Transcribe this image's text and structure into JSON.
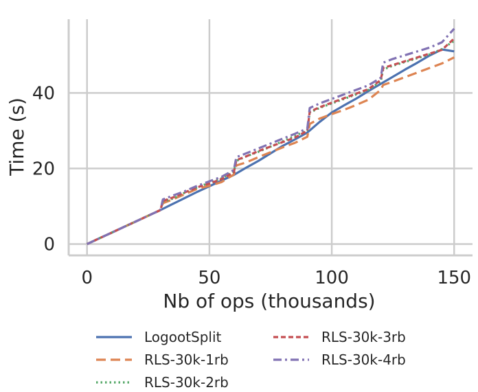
{
  "chart_data": {
    "type": "line",
    "xlabel": "Nb of ops (thousands)",
    "ylabel": "Time (s)",
    "xlim": [
      -7.5,
      157.5
    ],
    "ylim": [
      -3,
      59.5
    ],
    "x_ticks": [
      0,
      50,
      100,
      150
    ],
    "y_ticks": [
      0,
      20,
      40
    ],
    "grid": true,
    "legend_position": "bottom",
    "series": [
      {
        "name": "LogootSplit",
        "color": "#4c72b0",
        "dash": "solid",
        "x": [
          0,
          5,
          10,
          15,
          20,
          25,
          30,
          35,
          40,
          45,
          50,
          55,
          60,
          65,
          70,
          75,
          80,
          85,
          90,
          95,
          100,
          105,
          110,
          115,
          120,
          125,
          130,
          135,
          140,
          145,
          150
        ],
        "y": [
          0,
          1.5,
          3,
          4.5,
          6,
          7.5,
          9,
          10.6,
          12.2,
          13.8,
          15.3,
          16.8,
          18.3,
          20.2,
          22,
          24,
          26,
          27.7,
          29.5,
          32.3,
          34.8,
          36.7,
          38.5,
          40.5,
          42.4,
          44.3,
          46.2,
          48,
          49.9,
          51.5,
          51
        ]
      },
      {
        "name": "RLS-30k-1rb",
        "color": "#dd8452",
        "dash": "dashed",
        "x": [
          0,
          5,
          10,
          15,
          20,
          25,
          30,
          31,
          35,
          40,
          45,
          50,
          55,
          60,
          61,
          65,
          70,
          75,
          80,
          85,
          90,
          91,
          95,
          100,
          105,
          110,
          115,
          120,
          121,
          125,
          130,
          135,
          140,
          145,
          150
        ],
        "y": [
          0,
          1.5,
          3,
          4.5,
          6,
          7.5,
          9,
          10.8,
          11.8,
          13.2,
          14.6,
          15.4,
          16.4,
          18.4,
          20.8,
          21.6,
          23,
          24.3,
          25.6,
          26.8,
          28.4,
          31.8,
          33.2,
          34.4,
          35.5,
          36.8,
          38.2,
          40.8,
          42.1,
          43,
          44.2,
          45.4,
          46.6,
          47.8,
          49.4
        ]
      },
      {
        "name": "RLS-30k-2rb",
        "color": "#55a868",
        "dash": "dotted",
        "x": [
          0,
          5,
          10,
          15,
          20,
          25,
          30,
          31,
          35,
          40,
          45,
          50,
          55,
          60,
          61,
          65,
          70,
          75,
          80,
          85,
          90,
          91,
          95,
          100,
          105,
          110,
          115,
          120,
          121,
          125,
          130,
          135,
          140,
          145,
          150
        ],
        "y": [
          0,
          1.5,
          3,
          4.5,
          6,
          7.5,
          9,
          11.2,
          12,
          13.6,
          15,
          16.2,
          17.4,
          19.2,
          22,
          23.2,
          24.4,
          25.8,
          27.2,
          28.6,
          30.2,
          34.8,
          36,
          37.2,
          38.4,
          39.6,
          40.8,
          43,
          46.2,
          47.2,
          48.2,
          49.2,
          50.2,
          51.6,
          53.8
        ]
      },
      {
        "name": "RLS-30k-3rb",
        "color": "#c44e52",
        "dash": "densely-dashed",
        "x": [
          0,
          5,
          10,
          15,
          20,
          25,
          30,
          31,
          35,
          40,
          45,
          50,
          55,
          60,
          61,
          65,
          70,
          75,
          80,
          85,
          90,
          91,
          95,
          100,
          105,
          110,
          115,
          120,
          121,
          125,
          130,
          135,
          140,
          145,
          150
        ],
        "y": [
          0,
          1.5,
          3,
          4.5,
          6,
          7.5,
          9,
          11.4,
          12.3,
          13.7,
          15,
          16,
          17.2,
          19,
          22.2,
          23.2,
          24.6,
          25.8,
          27,
          28.2,
          30,
          35,
          36.2,
          37.4,
          38.6,
          39.8,
          41,
          43.4,
          46.6,
          47.4,
          48.4,
          49.4,
          50.4,
          51.4,
          54.4
        ]
      },
      {
        "name": "RLS-30k-4rb",
        "color": "#8172b3",
        "dash": "dashdot",
        "x": [
          0,
          5,
          10,
          15,
          20,
          25,
          30,
          31,
          35,
          40,
          45,
          50,
          55,
          60,
          61,
          65,
          70,
          75,
          80,
          85,
          90,
          91,
          95,
          100,
          105,
          110,
          115,
          120,
          121,
          125,
          130,
          135,
          140,
          145,
          150
        ],
        "y": [
          0,
          1.5,
          3,
          4.5,
          6,
          7.5,
          9,
          11.8,
          12.8,
          14,
          15.4,
          16.6,
          17.8,
          19.6,
          23,
          24,
          25.3,
          26.6,
          27.9,
          29.2,
          30.6,
          36,
          37.2,
          38.4,
          39.6,
          40.8,
          42,
          44,
          48,
          49,
          50,
          51,
          52,
          53.4,
          57
        ]
      }
    ]
  }
}
